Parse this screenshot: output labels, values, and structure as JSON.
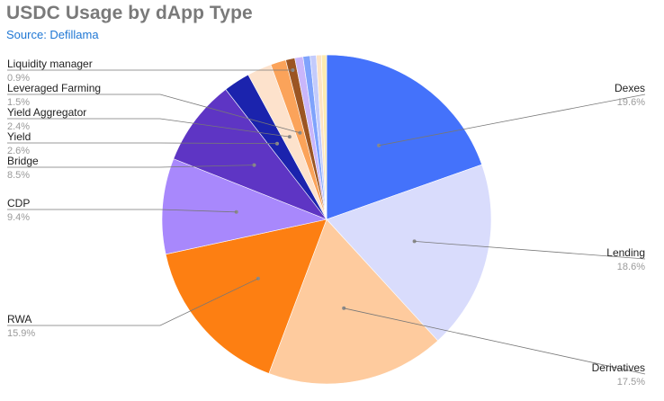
{
  "title": "USDC Usage by dApp Type",
  "subtitle": "Source: Defillama",
  "chart_data": {
    "type": "pie",
    "title": "USDC Usage by dApp Type",
    "subtitle": "Source: Defillama",
    "legend": "none (outside labels with leader lines)",
    "slices": [
      {
        "name": "Dexes",
        "value": 19.6,
        "label": "19.6%",
        "color": "#4472fb"
      },
      {
        "name": "Lending",
        "value": 18.6,
        "label": "18.6%",
        "color": "#d9dcfc"
      },
      {
        "name": "Derivatives",
        "value": 17.5,
        "label": "17.5%",
        "color": "#fecb9e"
      },
      {
        "name": "RWA",
        "value": 15.9,
        "label": "15.9%",
        "color": "#fd7f12"
      },
      {
        "name": "CDP",
        "value": 9.4,
        "label": "9.4%",
        "color": "#a888fc"
      },
      {
        "name": "Bridge",
        "value": 8.5,
        "label": "8.5%",
        "color": "#5e35c4"
      },
      {
        "name": "Yield",
        "value": 2.6,
        "label": "2.6%",
        "color": "#1b23ad"
      },
      {
        "name": "Yield Aggregator",
        "value": 2.4,
        "label": "2.4%",
        "color": "#fde2cc"
      },
      {
        "name": "Leveraged Farming",
        "value": 1.5,
        "label": "1.5%",
        "color": "#fba35a"
      },
      {
        "name": "Liquidity manager",
        "value": 0.9,
        "label": "0.9%",
        "color": "#9b5523"
      },
      {
        "name": "",
        "value": 0.8,
        "label": "",
        "color": "#c9b6fb"
      },
      {
        "name": "",
        "value": 0.7,
        "label": "",
        "color": "#7fa3fc"
      },
      {
        "name": "",
        "value": 0.6,
        "label": "",
        "color": "#c3cbfc"
      },
      {
        "name": "",
        "value": 0.5,
        "label": "",
        "color": "#fde3c4"
      },
      {
        "name": "",
        "value": 0.5,
        "label": "",
        "color": "#fdeab0"
      }
    ]
  }
}
